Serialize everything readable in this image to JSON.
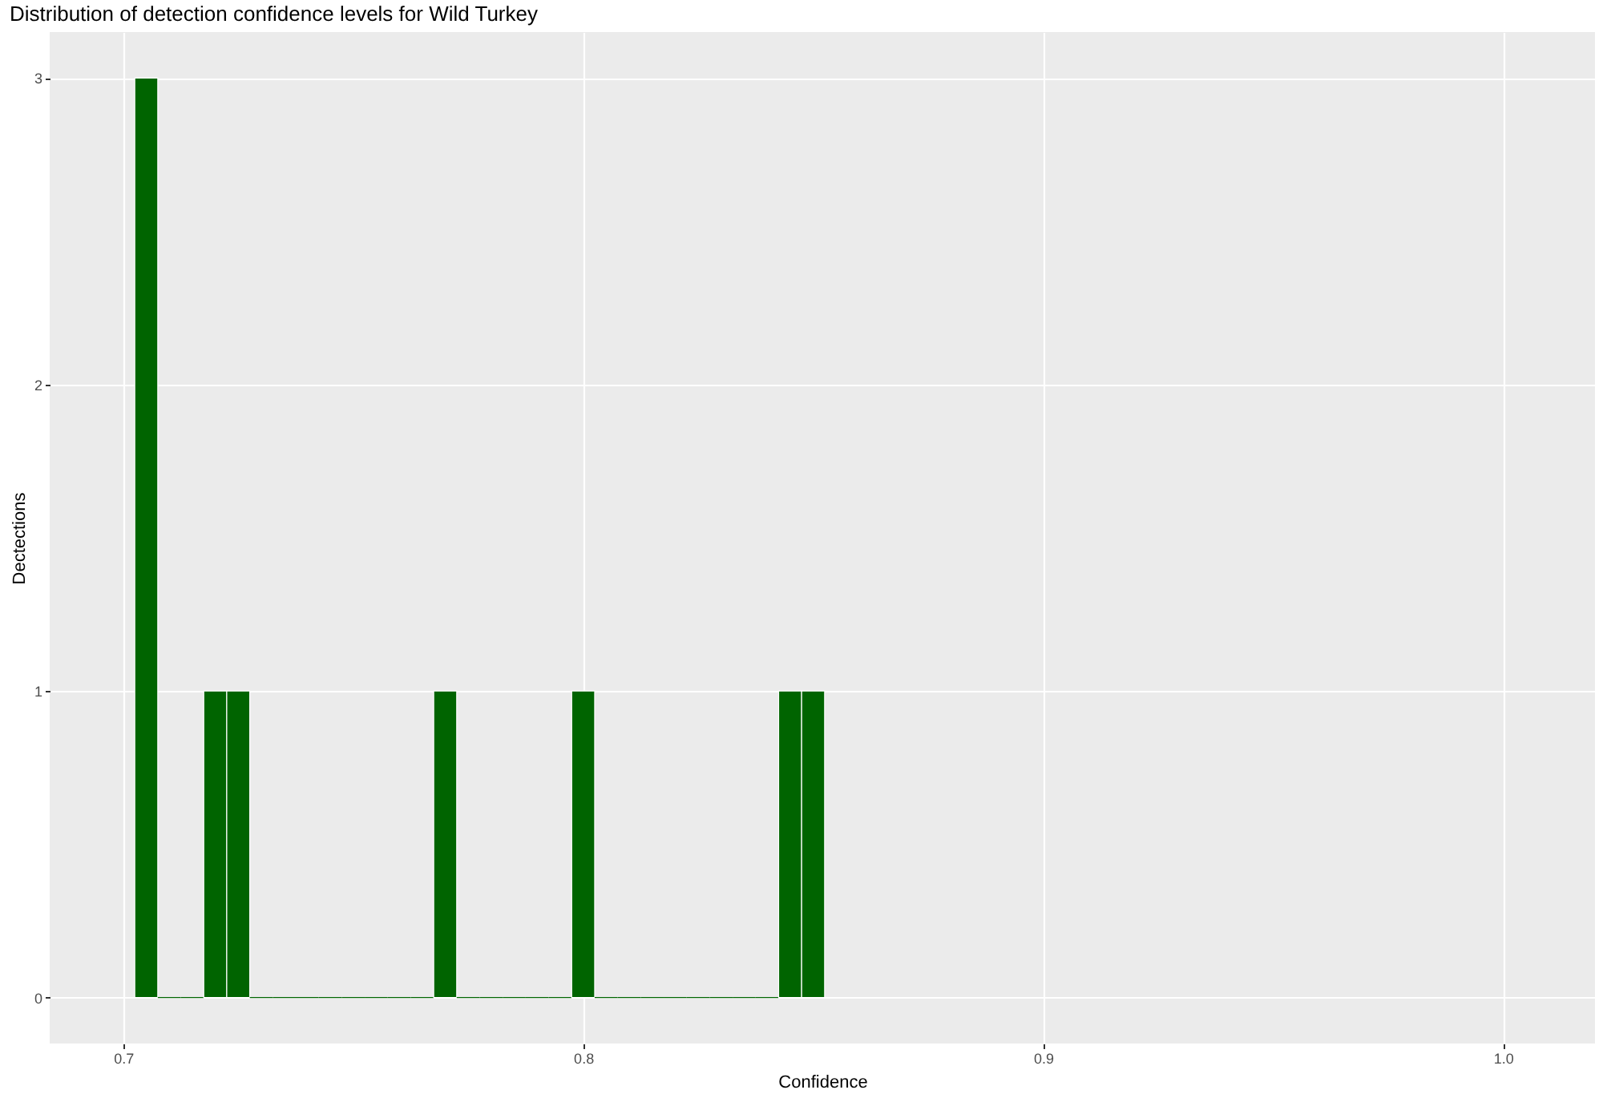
{
  "chart_data": {
    "type": "histogram",
    "title": "Distribution of detection confidence levels for Wild Turkey",
    "xlabel": "Confidence",
    "ylabel": "Dectections",
    "bins": [
      0.7025,
      0.7075,
      0.7125,
      0.7175,
      0.7225,
      0.7275,
      0.7325,
      0.7375,
      0.7425,
      0.7475,
      0.7525,
      0.7575,
      0.7625,
      0.7675,
      0.7725,
      0.7775,
      0.7825,
      0.7875,
      0.7925,
      0.7975,
      0.8025,
      0.8075,
      0.8125,
      0.8175,
      0.8225,
      0.8275,
      0.8325,
      0.8375,
      0.8425,
      0.8475,
      0.8525
    ],
    "values": [
      3,
      0,
      0,
      1,
      1,
      0,
      0,
      0,
      0,
      0,
      0,
      0,
      0,
      1,
      0,
      0,
      0,
      0,
      0,
      1,
      0,
      0,
      0,
      0,
      0,
      0,
      0,
      0,
      1,
      1
    ],
    "color": "#006400",
    "xlim": [
      0.684,
      1.02
    ],
    "xticks": [
      0.7,
      0.8,
      0.9,
      {
        "value": 1.0,
        "label": "1.0"
      }
    ],
    "ylim": [
      -0.15,
      3.15
    ],
    "yticks": [
      0,
      1,
      2,
      3
    ],
    "grid": true
  }
}
